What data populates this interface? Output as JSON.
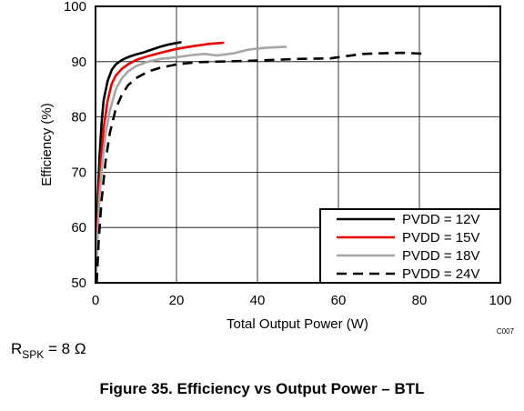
{
  "chart_data": {
    "type": "line",
    "title": "Figure 35. Efficiency vs Output Power – BTL",
    "xlabel": "Total Output Power (W)",
    "ylabel": "Efficiency (%)",
    "xlim": [
      0,
      100
    ],
    "ylim": [
      50,
      100
    ],
    "xticks": [
      0,
      20,
      40,
      60,
      80,
      100
    ],
    "yticks": [
      50,
      60,
      70,
      80,
      90,
      100
    ],
    "grid": true,
    "legend_position": "bottom-right",
    "figure_code": "C007",
    "condition": {
      "symbol": "R",
      "subscript": "SPK",
      "value": " = 8 Ω"
    },
    "series": [
      {
        "name": "PVDD = 12V",
        "color": "#000000",
        "dash": "solid",
        "x": [
          0.1,
          0.3,
          0.6,
          1.0,
          1.5,
          2.0,
          3.0,
          4.0,
          5.0,
          6.5,
          8.0,
          10.0,
          12.0,
          14.0,
          16.0,
          18.0,
          19.5,
          21.0
        ],
        "y": [
          50,
          58,
          66,
          73,
          79,
          83,
          86.5,
          88.5,
          89.5,
          90.3,
          90.8,
          91.3,
          91.7,
          92.2,
          92.7,
          93.1,
          93.3,
          93.5
        ]
      },
      {
        "name": "PVDD = 15V",
        "color": "#e60000",
        "dash": "solid",
        "x": [
          0.1,
          0.4,
          0.8,
          1.3,
          2.0,
          3.0,
          4.0,
          5.0,
          6.5,
          8.0,
          10.0,
          13.0,
          16.0,
          20.0,
          24.0,
          28.0,
          31.5
        ],
        "y": [
          50,
          58,
          66,
          72,
          78,
          83,
          86,
          87.5,
          88.7,
          89.5,
          90.3,
          91.0,
          91.6,
          92.3,
          92.8,
          93.2,
          93.4
        ]
      },
      {
        "name": "PVDD = 18V",
        "color": "#a6a6a6",
        "dash": "solid",
        "x": [
          0.1,
          0.5,
          1.0,
          1.7,
          2.5,
          3.5,
          5.0,
          6.5,
          8.0,
          10.0,
          13.0,
          16.0,
          20.0,
          24.0,
          27.0,
          30.0,
          34.0,
          38.0,
          42.0,
          47.0
        ],
        "y": [
          50,
          58,
          66,
          72,
          77,
          81,
          85,
          87,
          88.2,
          89.2,
          90.0,
          90.5,
          90.8,
          91.2,
          91.4,
          91.1,
          91.5,
          92.2,
          92.5,
          92.7
        ]
      },
      {
        "name": "PVDD = 24V",
        "color": "#000000",
        "dash": "dashed",
        "x": [
          0.3,
          0.8,
          1.5,
          2.5,
          3.5,
          5.0,
          6.5,
          8.0,
          10.0,
          13.0,
          16.0,
          20.0,
          25.0,
          30.0,
          40.0,
          50.0,
          58.0,
          62.0,
          66.0,
          70.0,
          76.0,
          82.0
        ],
        "y": [
          50,
          58,
          65,
          72,
          77,
          81.5,
          84,
          85.7,
          87.0,
          88.2,
          88.9,
          89.5,
          89.9,
          90.0,
          90.2,
          90.5,
          90.6,
          91.0,
          91.4,
          91.5,
          91.6,
          91.4
        ]
      }
    ]
  }
}
